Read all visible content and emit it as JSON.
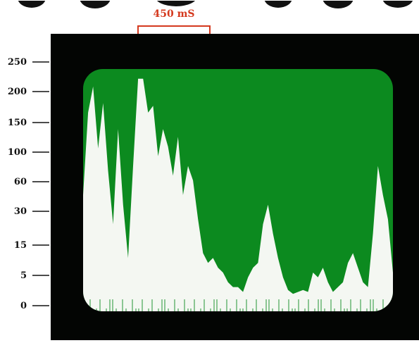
{
  "chart_data": {
    "type": "area",
    "title": "",
    "xlabel": "",
    "ylabel": "",
    "y_ticks": [
      "250",
      "200",
      "150",
      "100",
      "60",
      "30",
      "15",
      "5",
      "0"
    ],
    "annotation": {
      "label": "450 mS"
    },
    "series": [
      {
        "values": [
          120,
          205,
          232,
          168,
          215,
          145,
          90,
          188,
          110,
          55,
          150,
          240,
          240,
          205,
          212,
          160,
          188,
          170,
          140,
          180,
          120,
          150,
          135,
          95,
          60,
          50,
          55,
          45,
          40,
          30,
          25,
          25,
          20,
          35,
          45,
          50,
          90,
          110,
          80,
          55,
          35,
          22,
          18,
          20,
          22,
          20,
          40,
          35,
          45,
          30,
          20,
          25,
          30,
          50,
          60,
          45,
          30,
          25,
          80,
          150,
          120,
          95,
          40
        ]
      }
    ],
    "ylim": [
      0,
      250
    ],
    "colors": {
      "screen": "#0c8a1f",
      "trace": "#f4f7f2",
      "bezel": "#030503",
      "annotation": "#d4391e",
      "axis": "#111111"
    }
  }
}
